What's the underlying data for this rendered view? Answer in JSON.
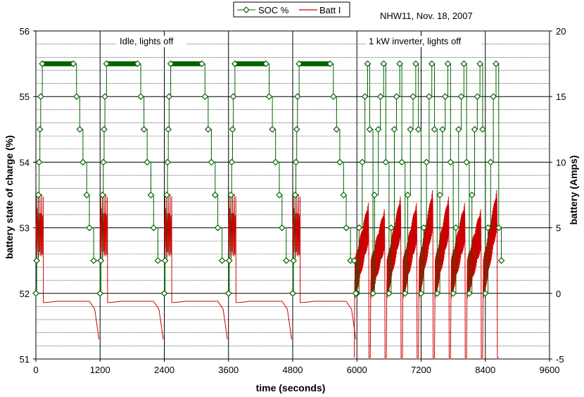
{
  "chart_data": {
    "type": "line",
    "title": "NHW11, Nov. 18, 2007",
    "xlabel": "time (seconds)",
    "ylabel_left": "battery state of charge (%)",
    "ylabel_right": "battery (Amps)",
    "xlim": [
      0,
      9600
    ],
    "x_ticks": [
      "0",
      "1200",
      "2400",
      "3600",
      "4800",
      "6000",
      "7200",
      "8400",
      "9600"
    ],
    "ylim_left": [
      51,
      56
    ],
    "y_ticks_left": [
      "51",
      "52",
      "53",
      "54",
      "55",
      "56"
    ],
    "ylim_right": [
      -5,
      20
    ],
    "y_ticks_right": [
      "-5",
      "0",
      "5",
      "10",
      "15",
      "20"
    ],
    "grid": true,
    "legend_position": "top-center",
    "annotations": [
      "Idle, lights off",
      "1 kW inverter, lights off"
    ],
    "soc_color": "#006400",
    "current_color": "#cc0000",
    "series": [
      {
        "name": "SOC %",
        "axis": "left",
        "marker": "diamond",
        "idle_cycles": [
          {
            "x": [
              0,
              15,
              45,
              60,
              75,
              90,
              120,
              700,
              760,
              820,
              880,
              950,
              1000,
              1080,
              1200
            ],
            "y": [
              52.0,
              52.5,
              53.5,
              54.0,
              54.5,
              55.0,
              55.5,
              55.5,
              55.0,
              54.5,
              54.0,
              53.5,
              53.0,
              52.5,
              52.0
            ]
          }
        ],
        "idle_starts": [
          0,
          1200,
          2400,
          3600,
          4800
        ],
        "inverter_x": [
          5950,
          5980,
          6040,
          6100,
          6150,
          6200,
          6240,
          6300,
          6330,
          6400,
          6440,
          6500,
          6540,
          6600,
          6640,
          6700,
          6740,
          6800,
          6840,
          6900,
          6950,
          7000,
          7050,
          7100,
          7150,
          7200,
          7250,
          7300,
          7350,
          7400,
          7450,
          7500,
          7550,
          7600,
          7650,
          7700,
          7750,
          7800,
          7850,
          7900,
          7950,
          8000,
          8050,
          8100,
          8150,
          8200,
          8250,
          8300,
          8350,
          8400,
          8450,
          8500,
          8550,
          8600,
          8650,
          8700
        ],
        "inverter_y": [
          52.5,
          52.0,
          53.0,
          54.0,
          55.0,
          55.5,
          54.5,
          52.0,
          53.5,
          54.5,
          55.0,
          55.5,
          54.0,
          52.0,
          53.0,
          54.5,
          55.0,
          55.5,
          54.0,
          52.0,
          53.5,
          54.5,
          55.0,
          55.5,
          54.5,
          52.0,
          53.0,
          54.0,
          55.0,
          55.5,
          54.5,
          52.0,
          53.5,
          54.5,
          55.0,
          55.5,
          54.0,
          52.0,
          53.0,
          54.5,
          55.0,
          55.5,
          54.0,
          52.0,
          53.5,
          54.5,
          55.0,
          55.5,
          54.5,
          52.0,
          53.0,
          54.0,
          55.0,
          55.5,
          53.0,
          52.5
        ]
      },
      {
        "name": "Batt I",
        "axis": "right",
        "idle_pattern": {
          "x": [
            0,
            20,
            40,
            60,
            80,
            110,
            140,
            200,
            400,
            600,
            800,
            1000,
            1100,
            1180
          ],
          "y": [
            5.5,
            6.5,
            4.0,
            7.0,
            3.5,
            5.0,
            -0.7,
            -0.7,
            -0.6,
            -0.6,
            -0.6,
            -0.6,
            -1.2,
            -3.5
          ]
        },
        "inverter_bursts_start": [
          5950,
          6250,
          6550,
          6850,
          7150,
          7450,
          7750,
          8050,
          8350
        ],
        "inverter_burst_peak_amps": [
          5.5,
          5.0,
          6.0,
          5.5,
          6.5,
          6.0,
          5.5,
          5.0,
          6.5
        ],
        "inverter_low_amps": -4.9
      }
    ]
  }
}
